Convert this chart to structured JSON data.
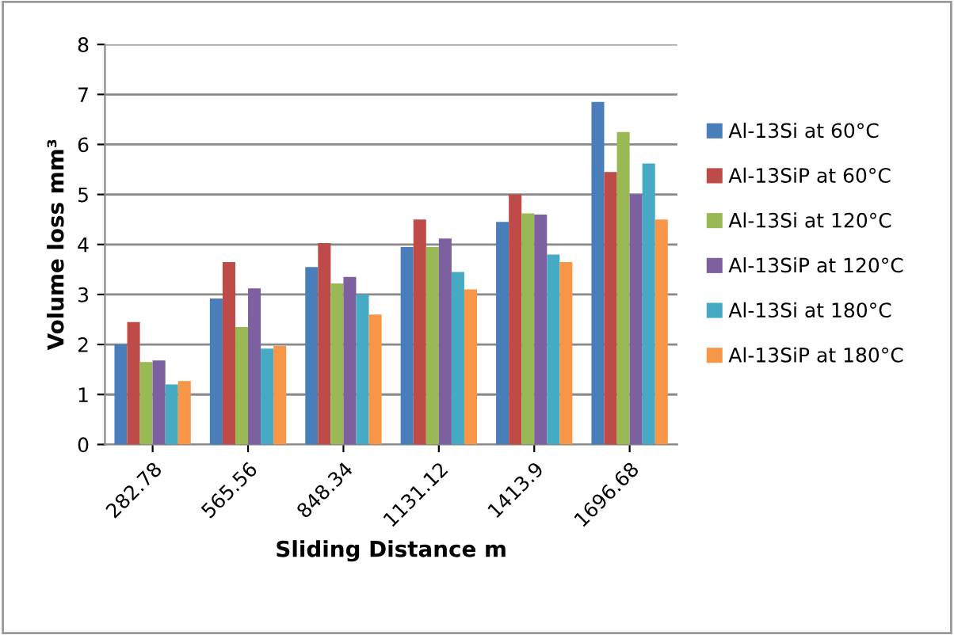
{
  "chart_data": {
    "type": "bar",
    "xlabel": "Sliding Distance m",
    "ylabel": "Volume loss mm³",
    "categories": [
      "282.78",
      "565.56",
      "848.34",
      "1131.12",
      "1413.9",
      "1696.68"
    ],
    "series": [
      {
        "name": "Al-13Si at 60°C",
        "color": "#4a7ebb",
        "values": [
          2.0,
          2.92,
          3.55,
          3.95,
          4.45,
          6.85
        ]
      },
      {
        "name": "Al-13SiP at 60°C",
        "color": "#be4b48",
        "values": [
          2.45,
          3.65,
          4.03,
          4.5,
          5.0,
          5.45
        ]
      },
      {
        "name": "Al-13Si at 120°C",
        "color": "#98b954",
        "values": [
          1.65,
          2.35,
          3.22,
          3.95,
          4.62,
          6.25
        ]
      },
      {
        "name": "Al-13SiP at 120°C",
        "color": "#7d60a0",
        "values": [
          1.68,
          3.12,
          3.35,
          4.12,
          4.6,
          5.0
        ]
      },
      {
        "name": "Al-13Si at 180°C",
        "color": "#46aac5",
        "values": [
          1.2,
          1.92,
          3.0,
          3.45,
          3.8,
          5.62
        ]
      },
      {
        "name": "Al-13SiP at 180°C",
        "color": "#f79646",
        "values": [
          1.27,
          1.97,
          2.6,
          3.1,
          3.65,
          4.5
        ]
      }
    ],
    "ylim": [
      0,
      8
    ],
    "yticks": [
      0,
      1,
      2,
      3,
      4,
      5,
      6,
      7,
      8
    ],
    "grid": "y",
    "legend": "right"
  }
}
